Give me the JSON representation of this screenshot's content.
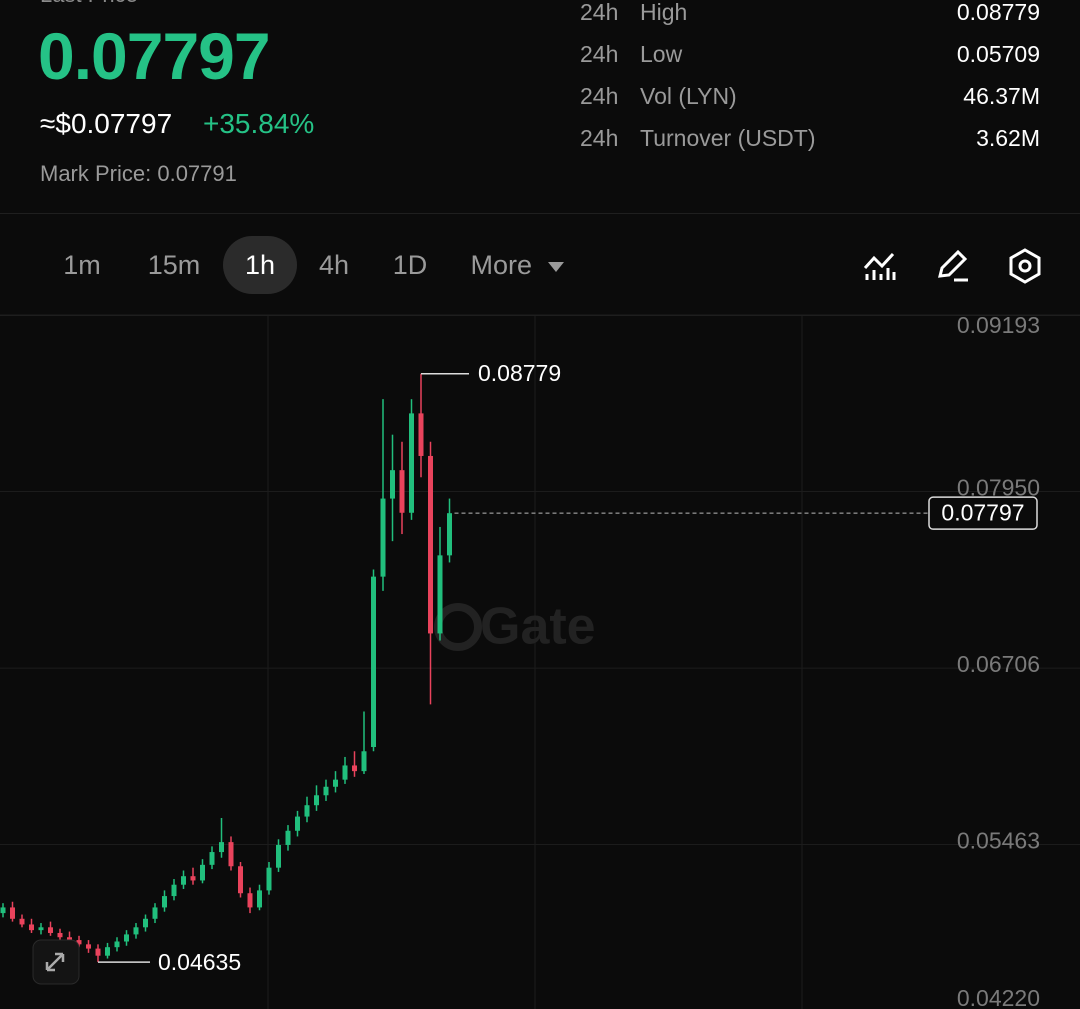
{
  "header": {
    "label": "Last Price",
    "last_price": "0.07797",
    "usd_price": "≈$0.07797",
    "change": "+35.84%",
    "mark_price": "Mark Price: 0.07791"
  },
  "stats": [
    {
      "period": "24h",
      "label": "High",
      "value": "0.08779"
    },
    {
      "period": "24h",
      "label": "Low",
      "value": "0.05709"
    },
    {
      "period": "24h",
      "label": "Vol (LYN)",
      "value": "46.37M"
    },
    {
      "period": "24h",
      "label": "Turnover (USDT)",
      "value": "3.62M"
    }
  ],
  "toolbar": {
    "intervals": [
      "1m",
      "15m",
      "1h",
      "4h",
      "1D"
    ],
    "active": 2,
    "more": "More"
  },
  "chart_data": {
    "type": "candlestick",
    "watermark": "Gate",
    "up_color": "#21bf7d",
    "down_color": "#e9435c",
    "open": [
      0.0498,
      0.0502,
      0.0494,
      0.049,
      0.0486,
      0.0488,
      0.0484,
      0.0481,
      0.0479,
      0.0476,
      0.0473,
      0.0468,
      0.0474,
      0.0478,
      0.0483,
      0.0488,
      0.0494,
      0.0502,
      0.051,
      0.0518,
      0.0524,
      0.0521,
      0.0532,
      0.0541,
      0.0548,
      0.0531,
      0.0512,
      0.0502,
      0.0514,
      0.053,
      0.0546,
      0.0556,
      0.0566,
      0.0574,
      0.0581,
      0.0587,
      0.0592,
      0.0602,
      0.0598,
      0.0615,
      0.0735,
      0.079,
      0.081,
      0.078,
      0.085,
      0.082,
      0.0695,
      0.075
    ],
    "high": [
      0.0505,
      0.0506,
      0.0497,
      0.0494,
      0.0491,
      0.0492,
      0.0487,
      0.0485,
      0.0482,
      0.0479,
      0.0476,
      0.0477,
      0.0481,
      0.0486,
      0.0491,
      0.0497,
      0.0505,
      0.0514,
      0.0522,
      0.0528,
      0.053,
      0.0536,
      0.0545,
      0.0565,
      0.0552,
      0.0534,
      0.0516,
      0.0518,
      0.0534,
      0.055,
      0.056,
      0.057,
      0.058,
      0.0588,
      0.0592,
      0.0598,
      0.0608,
      0.0612,
      0.064,
      0.074,
      0.086,
      0.0835,
      0.083,
      0.086,
      0.08779,
      0.083,
      0.077,
      0.079
    ],
    "low": [
      0.0495,
      0.0492,
      0.0488,
      0.0484,
      0.0483,
      0.0482,
      0.0478,
      0.0476,
      0.0474,
      0.047,
      0.04635,
      0.0466,
      0.0471,
      0.0475,
      0.048,
      0.0485,
      0.0491,
      0.0499,
      0.0507,
      0.0515,
      0.0518,
      0.0519,
      0.0529,
      0.0537,
      0.0528,
      0.0509,
      0.0498,
      0.05,
      0.0511,
      0.0527,
      0.0542,
      0.0552,
      0.0562,
      0.057,
      0.0577,
      0.0583,
      0.0589,
      0.0594,
      0.0596,
      0.0612,
      0.0725,
      0.076,
      0.0765,
      0.0775,
      0.0805,
      0.0645,
      0.069,
      0.0745
    ],
    "close": [
      0.0502,
      0.0494,
      0.049,
      0.0486,
      0.0488,
      0.0484,
      0.0481,
      0.0479,
      0.0476,
      0.0473,
      0.0468,
      0.0474,
      0.0478,
      0.0483,
      0.0488,
      0.0494,
      0.0502,
      0.051,
      0.0518,
      0.0524,
      0.0521,
      0.0532,
      0.0541,
      0.0548,
      0.0531,
      0.0512,
      0.0502,
      0.0514,
      0.053,
      0.0546,
      0.0556,
      0.0566,
      0.0574,
      0.0581,
      0.0587,
      0.0592,
      0.0602,
      0.0598,
      0.0612,
      0.0735,
      0.079,
      0.081,
      0.078,
      0.085,
      0.082,
      0.0695,
      0.075,
      0.07797
    ],
    "max_marker": 0.08779,
    "min_marker": 0.04635,
    "last_price": 0.07797,
    "ylim": [
      0.0422,
      0.09193
    ],
    "yticks": [
      {
        "value": 0.0422,
        "label": "0.04220"
      },
      0.05463,
      0.06706,
      {
        "value": 0.0795,
        "label": "0.07950"
      },
      0.09193
    ],
    "grid": true
  }
}
